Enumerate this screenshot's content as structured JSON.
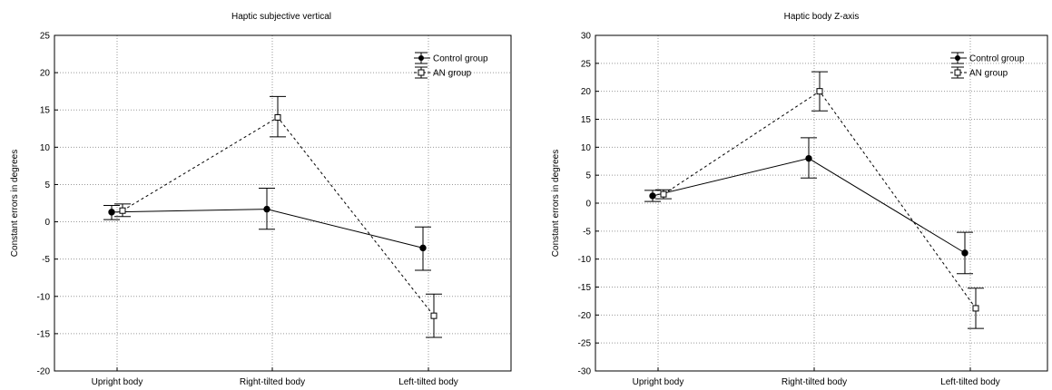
{
  "chart_data": [
    {
      "type": "line",
      "title": "Haptic subjective vertical",
      "ylabel": "Constant errors in degrees",
      "xlabel": "",
      "categories": [
        "Upright body",
        "Right-tilted body",
        "Left-tilted body"
      ],
      "ylim": [
        -20,
        25
      ],
      "yticks": [
        25,
        20,
        15,
        10,
        5,
        0,
        -5,
        -10,
        -15,
        -20
      ],
      "grid": true,
      "legend": "top-right",
      "series": [
        {
          "name": "Control group",
          "marker": "filled-circle",
          "line": "solid",
          "values": [
            1.3,
            1.7,
            -3.5
          ],
          "err_low": [
            0.3,
            -1.0,
            -6.5
          ],
          "err_high": [
            2.2,
            4.5,
            -0.7
          ]
        },
        {
          "name": "AN group",
          "marker": "open-square",
          "line": "dashed",
          "values": [
            1.5,
            14.0,
            -12.6
          ],
          "err_low": [
            0.7,
            11.4,
            -15.5
          ],
          "err_high": [
            2.4,
            16.8,
            -9.7
          ]
        }
      ]
    },
    {
      "type": "line",
      "title": "Haptic body Z-axis",
      "ylabel": "Constant errors in degrees",
      "xlabel": "",
      "categories": [
        "Upright body",
        "Right-tilted body",
        "Left-tilted body"
      ],
      "ylim": [
        -30,
        30
      ],
      "yticks": [
        30,
        25,
        20,
        15,
        10,
        5,
        0,
        -5,
        -10,
        -15,
        -20,
        -25,
        -30
      ],
      "grid": true,
      "legend": "top-right",
      "series": [
        {
          "name": "Control group",
          "marker": "filled-circle",
          "line": "solid",
          "values": [
            1.3,
            8.0,
            -8.9
          ],
          "err_low": [
            0.3,
            4.5,
            -12.6
          ],
          "err_high": [
            2.3,
            11.7,
            -5.2
          ]
        },
        {
          "name": "AN group",
          "marker": "open-square",
          "line": "dashed",
          "values": [
            1.6,
            20.0,
            -18.8
          ],
          "err_low": [
            0.8,
            16.5,
            -22.4
          ],
          "err_high": [
            2.4,
            23.5,
            -15.2
          ]
        }
      ]
    }
  ]
}
